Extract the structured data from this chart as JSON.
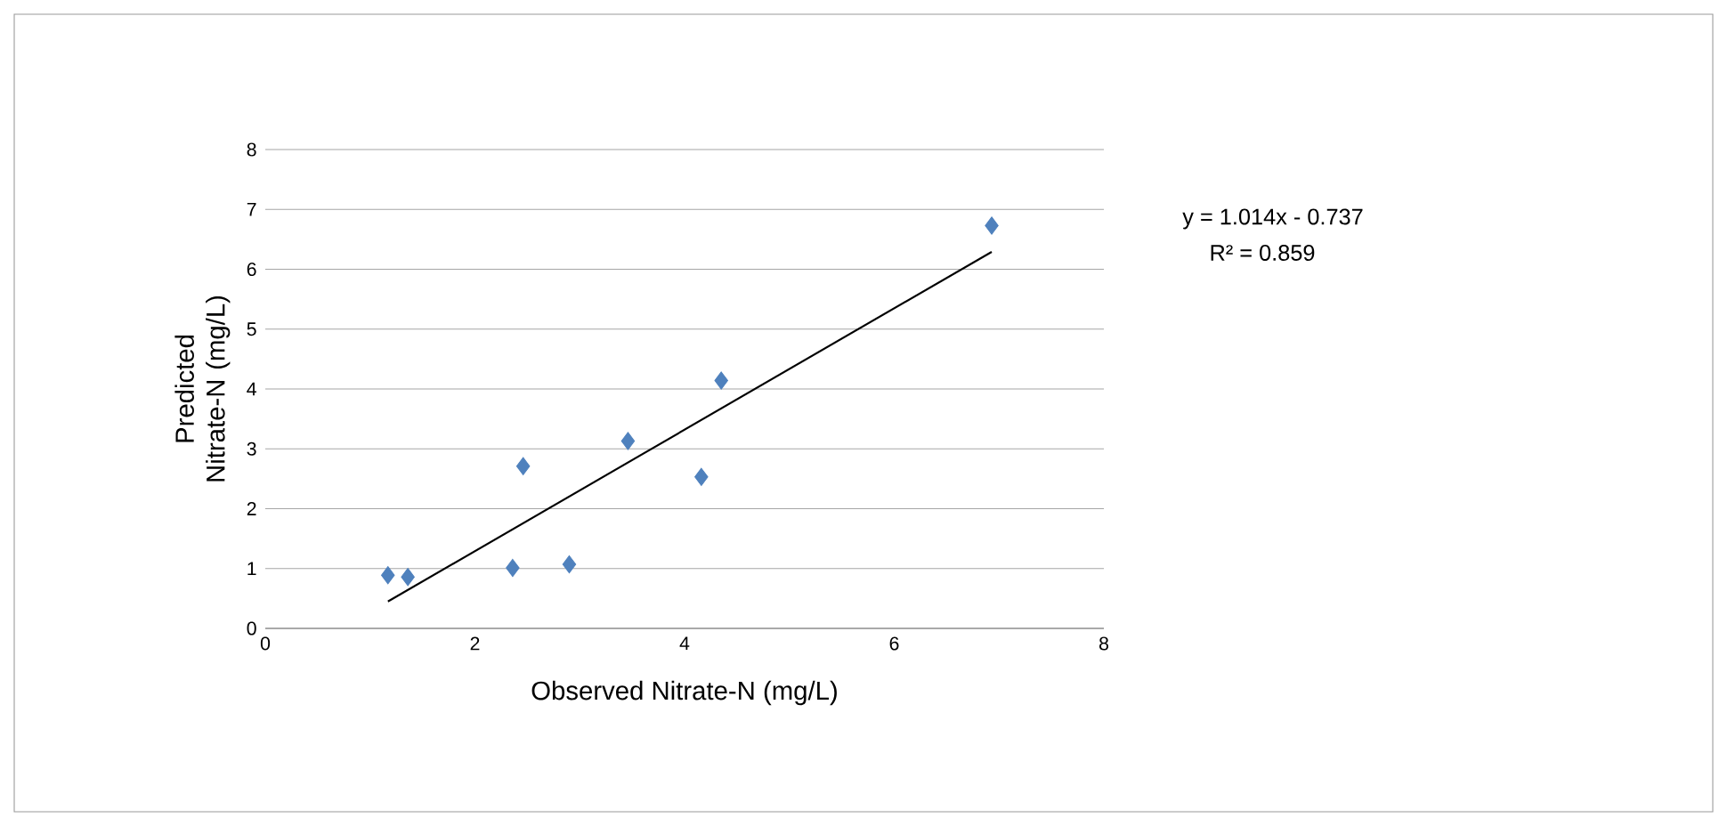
{
  "chart_data": {
    "type": "scatter",
    "xlabel": "Observed Nitrate-N (mg/L)",
    "ylabel": "Predicted Nitrate-N (mg/L)",
    "xlim": [
      0,
      8
    ],
    "ylim": [
      0,
      8
    ],
    "xticks": [
      0,
      2,
      4,
      6,
      8
    ],
    "yticks": [
      0,
      1,
      2,
      3,
      4,
      5,
      6,
      7,
      8
    ],
    "grid": "y",
    "series": [
      {
        "color": "#4f81bd",
        "marker": "diamond",
        "x": [
          1.17,
          1.36,
          2.36,
          2.46,
          2.9,
          3.46,
          4.16,
          4.35,
          6.93
        ],
        "values": [
          0.89,
          0.86,
          1.01,
          2.71,
          1.07,
          3.13,
          2.53,
          4.14,
          6.73
        ]
      },
      {
        "type": "line",
        "color": "#000000",
        "marker": "none",
        "line_style": "solid",
        "x": [
          1.17,
          6.93
        ],
        "values": [
          0.45,
          6.29
        ]
      }
    ],
    "annotations": [
      "y = 1.014x - 0.737",
      "R² = 0.859"
    ]
  }
}
